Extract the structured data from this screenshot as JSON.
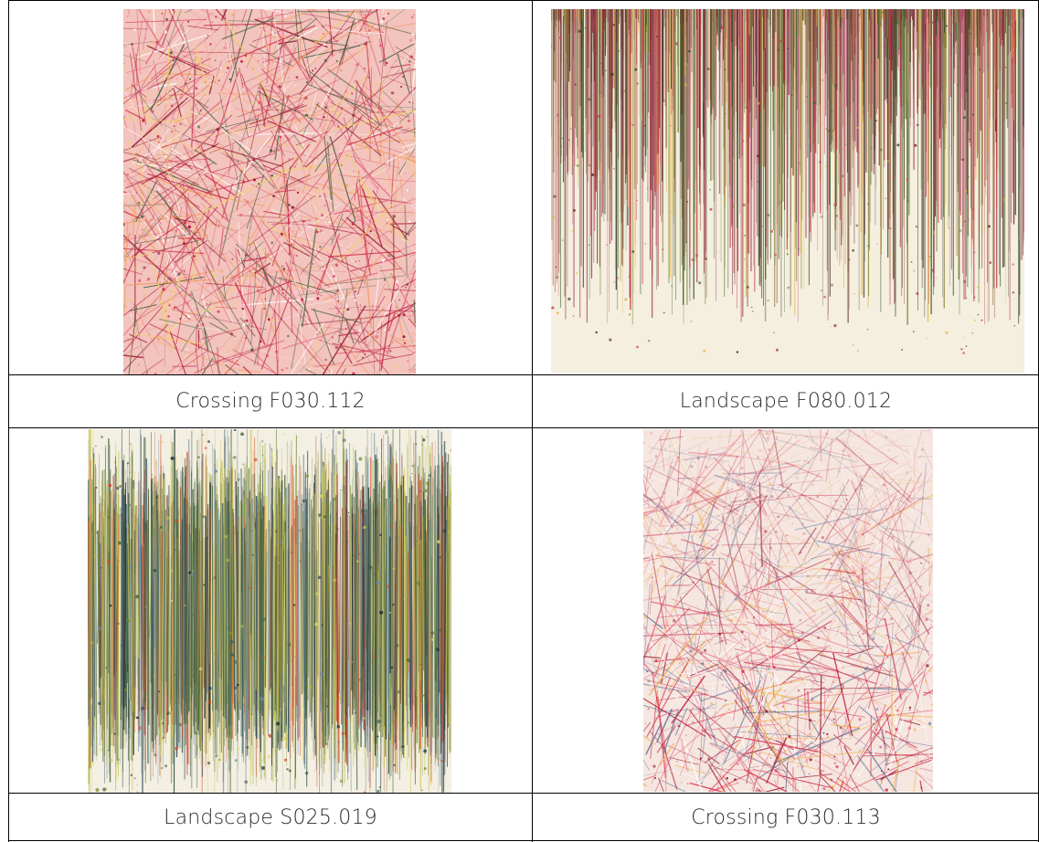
{
  "artworks": [
    {
      "caption": "Crossing F030.112",
      "style": "crossing",
      "palette": {
        "bg": "#f3c3bd",
        "colors": [
          "#b3123a",
          "#d42a4a",
          "#8e1b2e",
          "#e0667a",
          "#c84457",
          "#f1a06a",
          "#3b5c3a",
          "#ffffff",
          "#f2d26a"
        ]
      }
    },
    {
      "caption": "Landscape F080.012",
      "style": "rain",
      "palette": {
        "bg": "#f4efdf",
        "colors": [
          "#9c1f35",
          "#3e5a2c",
          "#c43a4f",
          "#6b7a2a",
          "#e2b447",
          "#5c2b1e",
          "#a84a6a",
          "#2f3e29"
        ]
      }
    },
    {
      "caption": "Landscape S025.019",
      "style": "band",
      "palette": {
        "bg": "#f3efe2",
        "colors": [
          "#4f6a3a",
          "#2c4a5e",
          "#7c8f3a",
          "#c9c24a",
          "#1f2f3a",
          "#6a8aa0",
          "#d9d36a",
          "#3a5a44",
          "#d44a2a"
        ]
      }
    },
    {
      "caption": "Crossing F030.113",
      "style": "crossing-gradient",
      "palette": {
        "bg": "#f5e6e0",
        "colors": [
          "#c21b3c",
          "#e0405a",
          "#9a1c33",
          "#f0b24a",
          "#e8768a",
          "#6a7a9a",
          "#ffffff"
        ]
      }
    }
  ]
}
